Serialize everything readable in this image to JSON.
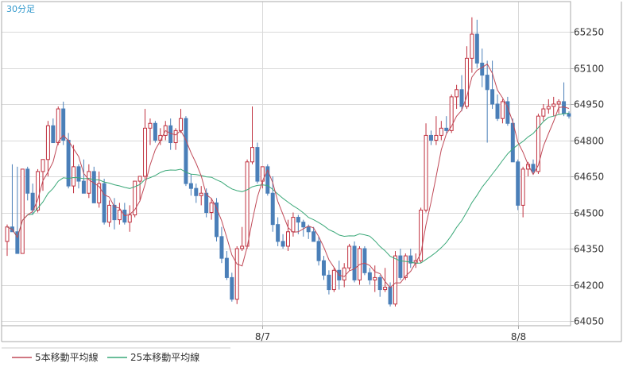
{
  "chart_data": {
    "type": "candlestick",
    "period_label": "30分足",
    "ylim": [
      64050,
      65380
    ],
    "yticks": [
      65250,
      65100,
      64950,
      64800,
      64650,
      64500,
      64350,
      64200,
      64050
    ],
    "ytick_labels": [
      "65250",
      "65100",
      "64950",
      "64800",
      "64650",
      "64500",
      "64350",
      "64200",
      "64050"
    ],
    "xtick_labels": [
      {
        "label": "8/7",
        "index": 50
      },
      {
        "label": "8/8",
        "index": 100
      }
    ],
    "grid": true,
    "legend_position": "bottom-left",
    "legend": [
      {
        "label": "5本移動平均線",
        "color": "#c04a58"
      },
      {
        "label": "25本移動平均線",
        "color": "#3aa878"
      }
    ],
    "colors": {
      "up": "#c0313f",
      "down": "#4a7fb8",
      "ma5": "#c04a58",
      "ma25": "#3aa878",
      "grid": "#d9d9d9",
      "frame": "#aaaaaa"
    },
    "candles": [
      [
        64380,
        64450,
        64320,
        64440
      ],
      [
        64440,
        64700,
        64420,
        64420
      ],
      [
        64420,
        64690,
        64330,
        64330
      ],
      [
        64330,
        64680,
        64330,
        64680
      ],
      [
        64680,
        64690,
        64550,
        64580
      ],
      [
        64580,
        64620,
        64490,
        64510
      ],
      [
        64510,
        64680,
        64500,
        64670
      ],
      [
        64670,
        64720,
        64590,
        64720
      ],
      [
        64720,
        64880,
        64650,
        64860
      ],
      [
        64860,
        64890,
        64790,
        64790
      ],
      [
        64790,
        64940,
        64780,
        64930
      ],
      [
        64930,
        64960,
        64780,
        64800
      ],
      [
        64800,
        64830,
        64600,
        64610
      ],
      [
        64610,
        64780,
        64580,
        64690
      ],
      [
        64690,
        64700,
        64600,
        64630
      ],
      [
        64630,
        64720,
        64580,
        64580
      ],
      [
        64580,
        64700,
        64560,
        64670
      ],
      [
        64670,
        64690,
        64540,
        64540
      ],
      [
        64540,
        64670,
        64520,
        64620
      ],
      [
        64620,
        64640,
        64450,
        64460
      ],
      [
        64460,
        64550,
        64440,
        64530
      ],
      [
        64530,
        64560,
        64430,
        64470
      ],
      [
        64470,
        64540,
        64450,
        64510
      ],
      [
        64510,
        64540,
        64450,
        64460
      ],
      [
        64460,
        64530,
        64420,
        64490
      ],
      [
        64490,
        64630,
        64480,
        64630
      ],
      [
        64630,
        64650,
        64550,
        64650
      ],
      [
        64650,
        64930,
        64640,
        64850
      ],
      [
        64850,
        64890,
        64780,
        64870
      ],
      [
        64870,
        64880,
        64790,
        64800
      ],
      [
        64800,
        64850,
        64780,
        64820
      ],
      [
        64820,
        64880,
        64800,
        64860
      ],
      [
        64860,
        64890,
        64760,
        64790
      ],
      [
        64790,
        64850,
        64760,
        64840
      ],
      [
        64840,
        64930,
        64830,
        64890
      ],
      [
        64890,
        64900,
        64610,
        64620
      ],
      [
        64620,
        64660,
        64570,
        64600
      ],
      [
        64600,
        64620,
        64540,
        64570
      ],
      [
        64570,
        64610,
        64530,
        64580
      ],
      [
        64580,
        64600,
        64480,
        64500
      ],
      [
        64500,
        64560,
        64470,
        64540
      ],
      [
        64540,
        64560,
        64380,
        64400
      ],
      [
        64400,
        64440,
        64290,
        64310
      ],
      [
        64310,
        64340,
        64220,
        64230
      ],
      [
        64230,
        64250,
        64130,
        64140
      ],
      [
        64140,
        64360,
        64120,
        64350
      ],
      [
        64350,
        64440,
        64340,
        64360
      ],
      [
        64360,
        64720,
        64350,
        64710
      ],
      [
        64710,
        64940,
        64700,
        64770
      ],
      [
        64770,
        64790,
        64620,
        64630
      ],
      [
        64630,
        64690,
        64600,
        64690
      ],
      [
        64690,
        64700,
        64570,
        64580
      ],
      [
        64580,
        64650,
        64420,
        64450
      ],
      [
        64450,
        64480,
        64360,
        64380
      ],
      [
        64380,
        64410,
        64350,
        64360
      ],
      [
        64360,
        64470,
        64340,
        64420
      ],
      [
        64420,
        64500,
        64400,
        64480
      ],
      [
        64480,
        64490,
        64410,
        64460
      ],
      [
        64460,
        64470,
        64400,
        64440
      ],
      [
        64440,
        64450,
        64390,
        64420
      ],
      [
        64420,
        64440,
        64380,
        64380
      ],
      [
        64380,
        64400,
        64280,
        64300
      ],
      [
        64300,
        64320,
        64220,
        64240
      ],
      [
        64240,
        64260,
        64160,
        64180
      ],
      [
        64180,
        64270,
        64170,
        64260
      ],
      [
        64260,
        64300,
        64180,
        64220
      ],
      [
        64220,
        64290,
        64190,
        64270
      ],
      [
        64270,
        64370,
        64260,
        64360
      ],
      [
        64360,
        64380,
        64210,
        64220
      ],
      [
        64220,
        64360,
        64200,
        64350
      ],
      [
        64350,
        64360,
        64240,
        64250
      ],
      [
        64250,
        64270,
        64200,
        64220
      ],
      [
        64220,
        64280,
        64170,
        64230
      ],
      [
        64230,
        64240,
        64150,
        64180
      ],
      [
        64180,
        64270,
        64170,
        64190
      ],
      [
        64190,
        64210,
        64110,
        64120
      ],
      [
        64120,
        64340,
        64110,
        64320
      ],
      [
        64320,
        64350,
        64220,
        64230
      ],
      [
        64230,
        64330,
        64220,
        64320
      ],
      [
        64320,
        64350,
        64270,
        64290
      ],
      [
        64290,
        64330,
        64270,
        64300
      ],
      [
        64300,
        64520,
        64290,
        64510
      ],
      [
        64510,
        64870,
        64500,
        64820
      ],
      [
        64820,
        64840,
        64780,
        64800
      ],
      [
        64800,
        64900,
        64780,
        64820
      ],
      [
        64820,
        64880,
        64800,
        64850
      ],
      [
        64850,
        64900,
        64830,
        64840
      ],
      [
        64840,
        64990,
        64830,
        64980
      ],
      [
        64980,
        65030,
        64930,
        65010
      ],
      [
        65010,
        65070,
        64920,
        64940
      ],
      [
        64940,
        65190,
        64930,
        65140
      ],
      [
        65140,
        65310,
        65080,
        65240
      ],
      [
        65240,
        65300,
        65100,
        65120
      ],
      [
        65120,
        65180,
        65020,
        65070
      ],
      [
        65070,
        65130,
        64790,
        65010
      ],
      [
        65010,
        65130,
        64930,
        64950
      ],
      [
        64950,
        64990,
        64880,
        64890
      ],
      [
        64890,
        64970,
        64870,
        64960
      ],
      [
        64960,
        64980,
        64860,
        64870
      ],
      [
        64870,
        64890,
        64710,
        64710
      ],
      [
        64710,
        64720,
        64510,
        64530
      ],
      [
        64530,
        64690,
        64480,
        64680
      ],
      [
        64680,
        64710,
        64650,
        64700
      ],
      [
        64700,
        64720,
        64660,
        64670
      ],
      [
        64670,
        64910,
        64660,
        64900
      ],
      [
        64900,
        64950,
        64880,
        64930
      ],
      [
        64930,
        64970,
        64910,
        64940
      ],
      [
        64940,
        64980,
        64900,
        64950
      ],
      [
        64950,
        64970,
        64910,
        64960
      ],
      [
        64960,
        65040,
        64900,
        64910
      ],
      [
        64910,
        64920,
        64890,
        64900
      ]
    ]
  }
}
